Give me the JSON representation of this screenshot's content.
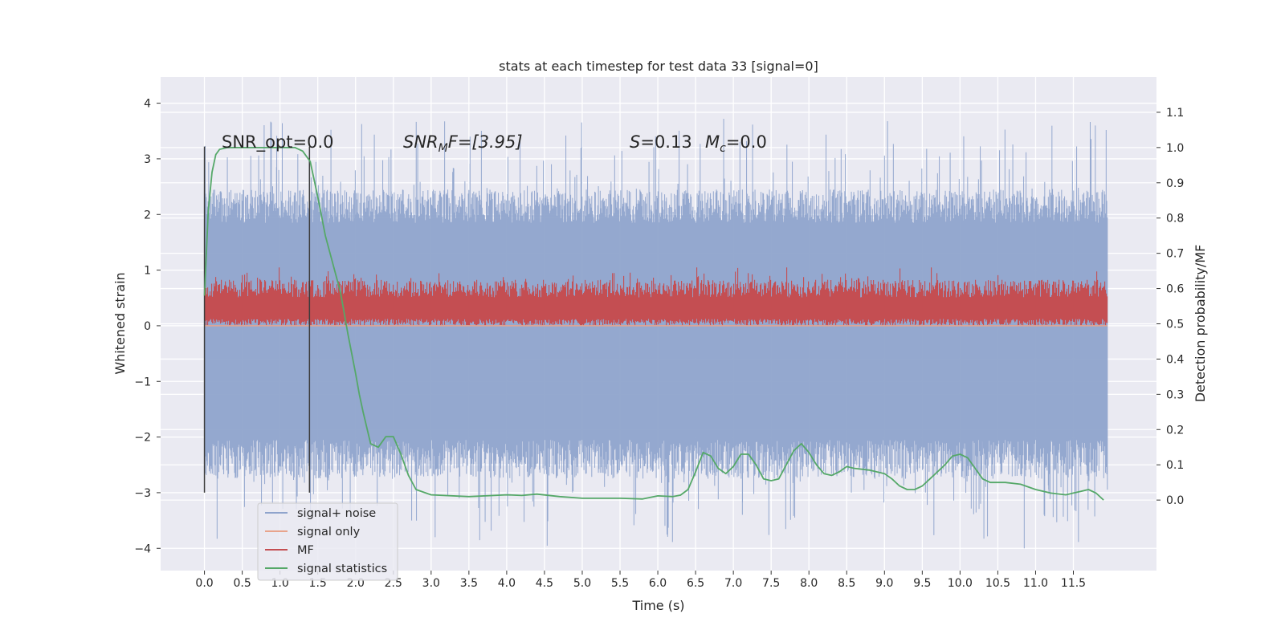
{
  "chart_data": {
    "type": "line",
    "title": "stats at each timestep for test data 33 [signal=0]",
    "xlabel": "Time (s)",
    "ylabel": "Whitened strain",
    "ylabel_right": "Detection probability/MF",
    "xlim": [
      -0.58,
      12.6
    ],
    "ylim": [
      -4.4,
      4.47
    ],
    "ylim_right": [
      -0.2,
      1.2
    ],
    "xticks": [
      "0.0",
      "0.5",
      "1.0",
      "1.5",
      "2.0",
      "2.5",
      "3.0",
      "3.5",
      "4.0",
      "4.5",
      "5.0",
      "5.5",
      "6.0",
      "6.5",
      "7.0",
      "7.5",
      "8.0",
      "8.5",
      "9.0",
      "9.5",
      "10.0",
      "10.5",
      "11.0",
      "11.5"
    ],
    "yticks": [
      "−4",
      "−3",
      "−2",
      "−1",
      "0",
      "1",
      "2",
      "3",
      "4"
    ],
    "yticks_right": [
      "0.0",
      "0.1",
      "0.2",
      "0.3",
      "0.4",
      "0.5",
      "0.6",
      "0.7",
      "0.8",
      "0.9",
      "1.0",
      "1.1"
    ],
    "grid": true,
    "legend_position": "lower-left",
    "colors": {
      "background": "#eaeaf2",
      "signal_noise": "#8fa4cc",
      "signal_only": "#e8a48c",
      "mf": "#c44e52",
      "signal_statistics": "#55a868",
      "markers": "#3c3c3c"
    },
    "annotations": {
      "snr_opt": "SNR_opt=0.0",
      "snr_mf_main": "SNR",
      "snr_mf_sub": "M",
      "snr_mf_rest": "F=[3.95]",
      "s_sym": "S",
      "s_val": "=0.13",
      "mc_sym": "M",
      "mc_sub": "c",
      "mc_val": "=0.0"
    },
    "vlines_x": [
      0.0,
      1.39
    ],
    "series": [
      {
        "name": "signal+ noise",
        "axis": "left",
        "x_range": [
          0.0,
          11.95
        ],
        "band": [
          -2.2,
          2.0
        ],
        "extremes": [
          -4.0,
          4.1
        ]
      },
      {
        "name": "signal only",
        "axis": "left",
        "x": [
          0.0,
          11.95
        ],
        "y": [
          0.0,
          0.0
        ]
      },
      {
        "name": "MF",
        "axis": "right",
        "x_range": [
          0.0,
          11.95
        ],
        "band": [
          0.5,
          0.6
        ],
        "extremes": [
          0.5,
          0.66
        ]
      },
      {
        "name": "signal statistics",
        "axis": "right",
        "x": [
          0.0,
          0.05,
          0.1,
          0.15,
          0.2,
          0.3,
          0.5,
          0.8,
          1.0,
          1.2,
          1.3,
          1.4,
          1.5,
          1.6,
          1.7,
          1.8,
          1.9,
          2.0,
          2.05,
          2.1,
          2.2,
          2.3,
          2.4,
          2.5,
          2.6,
          2.7,
          2.8,
          3.0,
          3.5,
          4.0,
          4.2,
          4.4,
          4.7,
          5.0,
          5.5,
          5.8,
          6.0,
          6.2,
          6.3,
          6.4,
          6.5,
          6.6,
          6.7,
          6.8,
          6.9,
          7.0,
          7.1,
          7.2,
          7.3,
          7.4,
          7.5,
          7.6,
          7.7,
          7.8,
          7.9,
          8.0,
          8.1,
          8.2,
          8.3,
          8.4,
          8.5,
          8.6,
          8.8,
          9.0,
          9.1,
          9.2,
          9.3,
          9.4,
          9.5,
          9.6,
          9.7,
          9.8,
          9.9,
          10.0,
          10.1,
          10.2,
          10.3,
          10.4,
          10.5,
          10.6,
          10.8,
          11.0,
          11.2,
          11.4,
          11.5,
          11.6,
          11.7,
          11.8,
          11.9
        ],
        "y": [
          0.58,
          0.82,
          0.93,
          0.98,
          0.995,
          1.0,
          1.0,
          1.0,
          1.0,
          1.0,
          0.99,
          0.96,
          0.86,
          0.75,
          0.67,
          0.59,
          0.47,
          0.36,
          0.3,
          0.25,
          0.16,
          0.15,
          0.18,
          0.18,
          0.13,
          0.07,
          0.03,
          0.015,
          0.01,
          0.015,
          0.013,
          0.017,
          0.01,
          0.005,
          0.005,
          0.003,
          0.012,
          0.01,
          0.014,
          0.03,
          0.08,
          0.135,
          0.125,
          0.09,
          0.075,
          0.095,
          0.13,
          0.13,
          0.1,
          0.06,
          0.055,
          0.06,
          0.1,
          0.14,
          0.16,
          0.135,
          0.1,
          0.075,
          0.07,
          0.08,
          0.095,
          0.09,
          0.085,
          0.075,
          0.06,
          0.04,
          0.03,
          0.03,
          0.04,
          0.06,
          0.08,
          0.1,
          0.125,
          0.13,
          0.12,
          0.09,
          0.06,
          0.05,
          0.05,
          0.05,
          0.045,
          0.03,
          0.02,
          0.015,
          0.02,
          0.025,
          0.03,
          0.02,
          0.0
        ]
      }
    ]
  }
}
